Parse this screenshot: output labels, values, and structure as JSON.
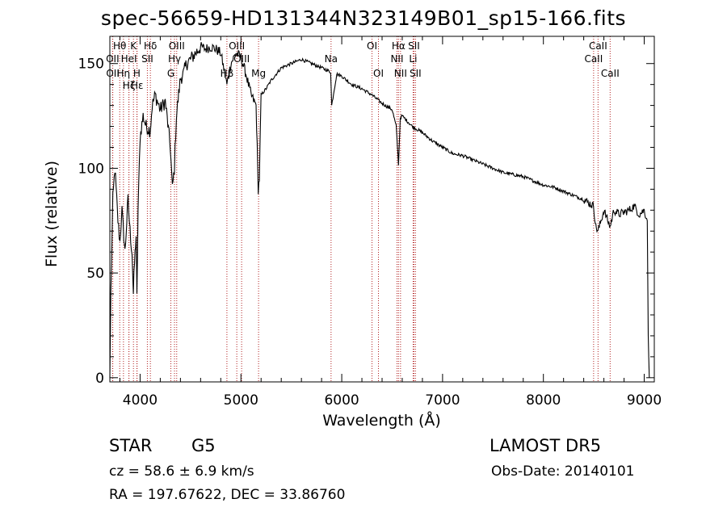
{
  "title": "spec-56659-HD131344N323149B01_sp15-166.fits",
  "info": {
    "object_type": "STAR",
    "subclass": "G5",
    "survey": "LAMOST  DR5",
    "cz": "cz = 58.6 ± 6.9 km/s",
    "obs_date": "Obs-Date: 20140101",
    "ra_dec": "RA = 197.67622, DEC =  33.86760"
  },
  "colors": {
    "spectrum": "#000000",
    "line_markers": "#b22222",
    "axes": "#000000"
  },
  "chart_data": {
    "type": "line",
    "title": "spec-56659-HD131344N323149B01_sp15-166.fits",
    "xlabel": "Wavelength (Å)",
    "ylabel": "Flux (relative)",
    "xlim": [
      3700,
      9100
    ],
    "ylim": [
      -2,
      163
    ],
    "x_ticks": [
      4000,
      5000,
      6000,
      7000,
      8000,
      9000
    ],
    "y_ticks": [
      0,
      50,
      100,
      150
    ],
    "grid": false,
    "series": [
      {
        "x": [
          3700,
          3710,
          3730,
          3750,
          3780,
          3800,
          3820,
          3850,
          3880,
          3900,
          3920,
          3933,
          3945,
          3960,
          3968,
          3980,
          4000,
          4030,
          4060,
          4100,
          4120,
          4150,
          4200,
          4250,
          4300,
          4320,
          4340,
          4360,
          4400,
          4430,
          4460,
          4500,
          4550,
          4600,
          4650,
          4700,
          4750,
          4800,
          4861,
          4900,
          4920,
          4950,
          5000,
          5050,
          5100,
          5150,
          5172,
          5183,
          5200,
          5250,
          5300,
          5400,
          5500,
          5600,
          5700,
          5800,
          5890,
          5900,
          5950,
          6000,
          6100,
          6200,
          6300,
          6400,
          6500,
          6540,
          6563,
          6580,
          6600,
          6700,
          6800,
          6900,
          7000,
          7100,
          7200,
          7300,
          7400,
          7500,
          7600,
          7700,
          7800,
          7900,
          8000,
          8100,
          8200,
          8300,
          8400,
          8498,
          8520,
          8542,
          8560,
          8600,
          8662,
          8680,
          8700,
          8750,
          8800,
          8850,
          8900,
          8950,
          9000,
          9030,
          9040,
          9050
        ],
        "y": [
          0,
          40,
          85,
          100,
          75,
          65,
          80,
          60,
          85,
          70,
          60,
          40,
          55,
          68,
          38,
          80,
          115,
          125,
          120,
          118,
          130,
          135,
          128,
          132,
          110,
          90,
          100,
          125,
          143,
          145,
          150,
          152,
          155,
          158,
          157,
          158,
          157,
          155,
          140,
          150,
          152,
          155,
          153,
          145,
          135,
          130,
          90,
          95,
          135,
          138,
          142,
          148,
          150,
          152,
          150,
          148,
          146,
          130,
          145,
          144,
          140,
          138,
          135,
          131,
          128,
          120,
          102,
          124,
          125,
          120,
          117,
          113,
          110,
          107,
          106,
          104,
          102,
          100,
          98,
          97,
          96,
          94,
          92,
          91,
          89,
          87,
          85,
          82,
          72,
          70,
          73,
          80,
          72,
          76,
          80,
          78,
          79,
          80,
          82,
          78,
          80,
          75,
          20,
          0
        ]
      }
    ],
    "spectral_lines": [
      {
        "label": "Hθ",
        "x": 3798,
        "row": 1
      },
      {
        "label": "OII",
        "x": 3727,
        "row": 2
      },
      {
        "label": "OII",
        "x": 3729,
        "row": 3
      },
      {
        "label": "Hζ",
        "x": 3889,
        "row": 4
      },
      {
        "label": "K",
        "x": 3934,
        "row": 1
      },
      {
        "label": "HeI",
        "x": 3889,
        "row": 2
      },
      {
        "label": "Hη",
        "x": 3835,
        "row": 3
      },
      {
        "label": "Hε",
        "x": 3970,
        "row": 4
      },
      {
        "label": "H",
        "x": 3968,
        "row": 3
      },
      {
        "label": "Hδ",
        "x": 4102,
        "row": 1
      },
      {
        "label": "SII",
        "x": 4072,
        "row": 2
      },
      {
        "label": "OIII",
        "x": 4363,
        "row": 1
      },
      {
        "label": "Hγ",
        "x": 4341,
        "row": 2
      },
      {
        "label": "G",
        "x": 4305,
        "row": 3
      },
      {
        "label": "Hβ",
        "x": 4861,
        "row": 3
      },
      {
        "label": "OIII",
        "x": 4959,
        "row": 1
      },
      {
        "label": "OIII",
        "x": 5007,
        "row": 2
      },
      {
        "label": "Mg",
        "x": 5175,
        "row": 3
      },
      {
        "label": "Na",
        "x": 5894,
        "row": 2
      },
      {
        "label": "OI",
        "x": 6300,
        "row": 1
      },
      {
        "label": "OI",
        "x": 6364,
        "row": 3
      },
      {
        "label": "Hα",
        "x": 6563,
        "row": 1
      },
      {
        "label": "NII",
        "x": 6548,
        "row": 2
      },
      {
        "label": "NII",
        "x": 6583,
        "row": 3
      },
      {
        "label": "SII",
        "x": 6716,
        "row": 1
      },
      {
        "label": "Li",
        "x": 6708,
        "row": 2
      },
      {
        "label": "SII",
        "x": 6731,
        "row": 3
      },
      {
        "label": "CaII",
        "x": 8542,
        "row": 1
      },
      {
        "label": "CaII",
        "x": 8498,
        "row": 2
      },
      {
        "label": "CaII",
        "x": 8662,
        "row": 3
      }
    ]
  }
}
